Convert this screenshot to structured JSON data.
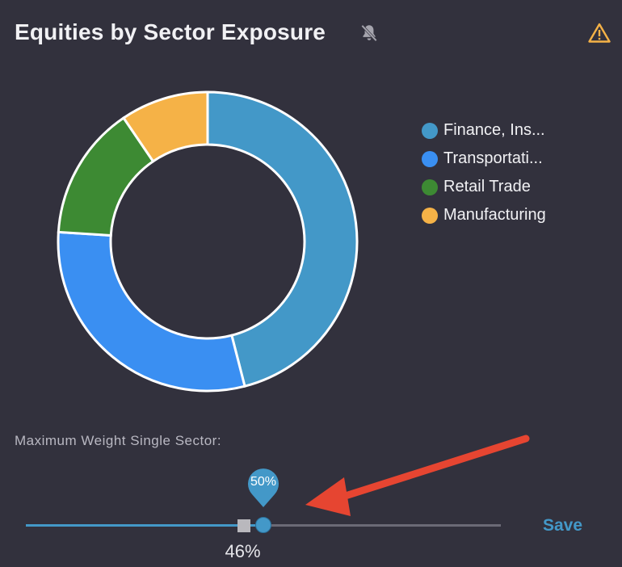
{
  "header": {
    "title": "Equities by Sector Exposure",
    "bell_icon": "bell-off-icon",
    "warning_icon": "warning-icon"
  },
  "chart_data": {
    "type": "pie",
    "series": [
      {
        "name": "Finance, Ins...",
        "value": 46,
        "color": "#4398c8"
      },
      {
        "name": "Transportati...",
        "value": 30,
        "color": "#3a8ff2"
      },
      {
        "name": "Retail Trade",
        "value": 14.5,
        "color": "#3d8a33"
      },
      {
        "name": "Manufacturing",
        "value": 9.5,
        "color": "#f5b247"
      }
    ]
  },
  "slider": {
    "label": "Maximum Weight Single Sector:",
    "limit_text": "50%",
    "current_text": "46%",
    "min": 0,
    "max": 100,
    "limit_value": 50,
    "current_value": 46
  },
  "save_label": "Save"
}
